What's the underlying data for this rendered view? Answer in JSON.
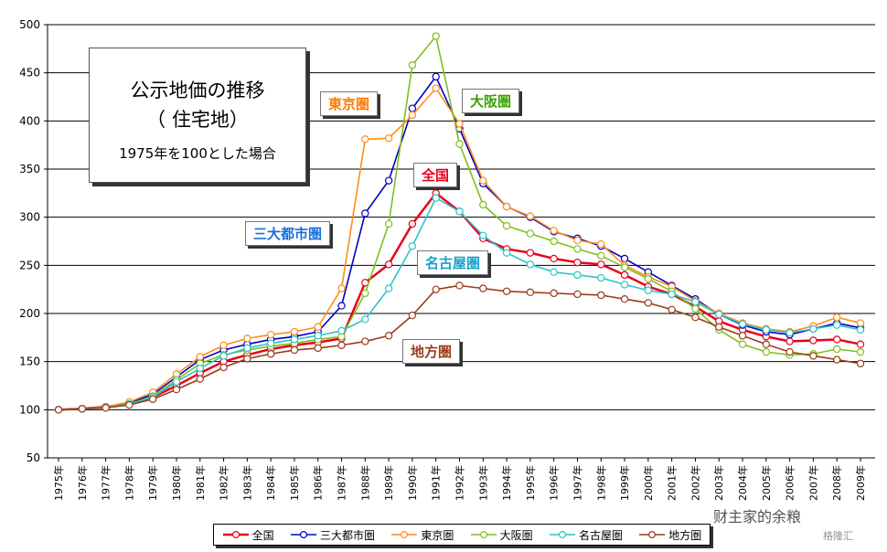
{
  "chart_data": {
    "type": "line",
    "title": "公示地価の推移",
    "subtitle": "（ 住宅地）",
    "note": "1975年を100とした場合",
    "ylim": [
      50,
      500
    ],
    "yticks": [
      "50",
      "100",
      "150",
      "200",
      "250",
      "300",
      "350",
      "400",
      "450",
      "500"
    ],
    "grid": true,
    "legend_position": "bottom",
    "categories": [
      "1975年",
      "1976年",
      "1977年",
      "1978年",
      "1979年",
      "1980年",
      "1981年",
      "1982年",
      "1983年",
      "1984年",
      "1985年",
      "1986年",
      "1987年",
      "1988年",
      "1989年",
      "1990年",
      "1991年",
      "1992年",
      "1993年",
      "1994年",
      "1995年",
      "1996年",
      "1997年",
      "1998年",
      "1999年",
      "2000年",
      "2001年",
      "2002年",
      "2003年",
      "2004年",
      "2005年",
      "2006年",
      "2007年",
      "2008年",
      "2009年"
    ],
    "series": [
      {
        "name": "全国",
        "color": "#e8001c",
        "marker_fill": "#ffffff",
        "values": [
          100,
          101,
          103,
          106,
          113,
          125,
          138,
          150,
          157,
          163,
          167,
          170,
          174,
          232,
          251,
          293,
          325,
          306,
          278,
          267,
          263,
          257,
          253,
          251,
          240,
          228,
          220,
          207,
          192,
          183,
          176,
          171,
          172,
          173,
          168
        ]
      },
      {
        "name": "三大都市圏",
        "color": "#0000c8",
        "marker_fill": "#ffffff",
        "values": [
          100,
          101,
          103,
          107,
          116,
          134,
          152,
          162,
          168,
          173,
          176,
          181,
          208,
          304,
          338,
          413,
          446,
          392,
          335,
          311,
          300,
          285,
          278,
          270,
          257,
          243,
          229,
          215,
          199,
          188,
          181,
          178,
          184,
          190,
          185
        ]
      },
      {
        "name": "東京圏",
        "color": "#ff8c1a",
        "marker_fill": "#ffffff",
        "values": [
          100,
          101,
          103,
          108,
          118,
          137,
          155,
          167,
          174,
          178,
          181,
          186,
          226,
          381,
          382,
          406,
          434,
          397,
          338,
          311,
          301,
          286,
          276,
          272,
          250,
          238,
          228,
          213,
          200,
          190,
          184,
          181,
          187,
          196,
          190
        ]
      },
      {
        "name": "大阪圏",
        "color": "#7fbf1f",
        "marker_fill": "#ffffff",
        "values": [
          100,
          101,
          102,
          106,
          114,
          131,
          148,
          157,
          162,
          166,
          169,
          173,
          176,
          221,
          293,
          458,
          488,
          376,
          313,
          291,
          283,
          275,
          267,
          260,
          248,
          236,
          223,
          205,
          183,
          168,
          160,
          157,
          158,
          163,
          160
        ]
      },
      {
        "name": "名古屋圏",
        "color": "#2ec4c4",
        "marker_fill": "#ffffff",
        "values": [
          100,
          101,
          102,
          106,
          113,
          129,
          143,
          156,
          164,
          169,
          173,
          177,
          182,
          194,
          226,
          270,
          320,
          306,
          281,
          263,
          251,
          243,
          240,
          237,
          230,
          224,
          220,
          212,
          199,
          189,
          183,
          180,
          184,
          188,
          183
        ]
      },
      {
        "name": "地方圏",
        "color": "#9a3c1a",
        "marker_fill": "#ffffff",
        "values": [
          100,
          101,
          102,
          105,
          111,
          121,
          132,
          144,
          153,
          158,
          162,
          164,
          167,
          171,
          177,
          198,
          225,
          229,
          226,
          223,
          222,
          221,
          220,
          219,
          215,
          211,
          204,
          196,
          186,
          177,
          168,
          160,
          156,
          152,
          148
        ]
      }
    ]
  },
  "series_tags": {
    "tokyo": "東京圏",
    "osaka": "大阪圏",
    "zenkoku": "全国",
    "sandai": "三大都市圏",
    "nagoya": "名古屋圏",
    "chiho": "地方圏"
  },
  "watermark": "财主家的余粮",
  "watermark2": "格隆汇"
}
